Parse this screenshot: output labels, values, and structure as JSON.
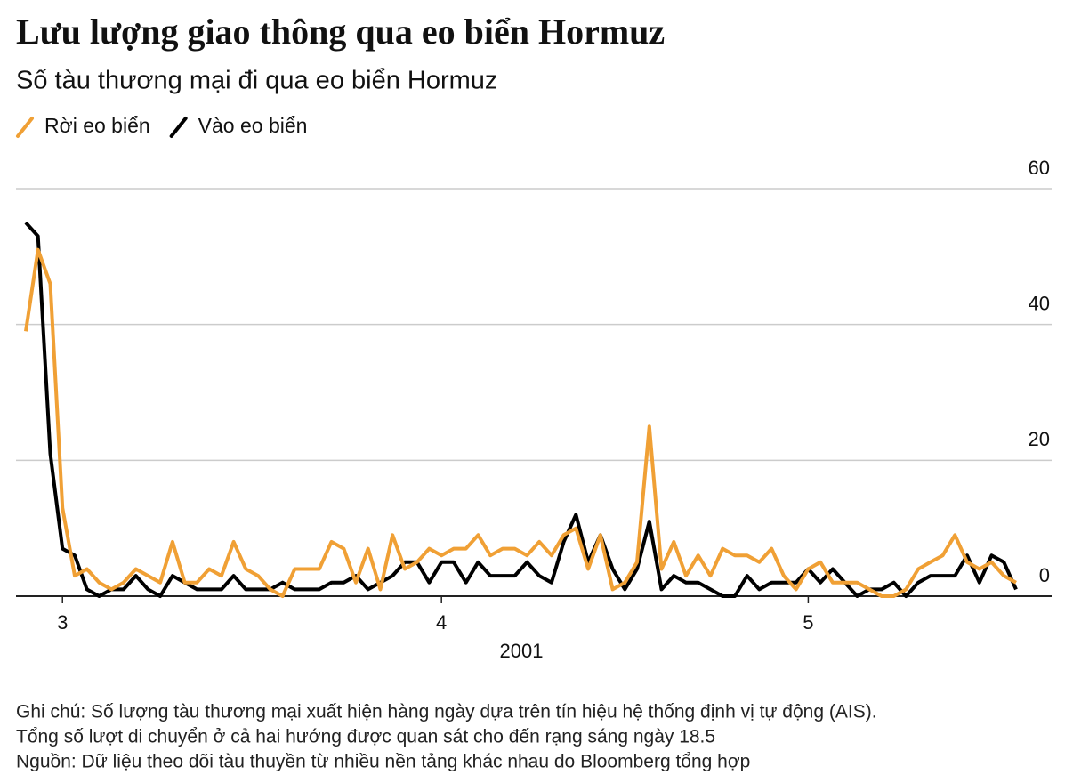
{
  "chart_data": {
    "type": "line",
    "title": "Lưu lượng giao thông qua eo biển Hormuz",
    "subtitle": "Số tàu thương mại đi qua eo biển Hormuz",
    "xlabel": "2001",
    "categories": [
      null,
      null,
      null,
      "3",
      null,
      null,
      null,
      null,
      null,
      null,
      null,
      null,
      null,
      null,
      null,
      null,
      null,
      null,
      null,
      null,
      null,
      null,
      null,
      null,
      null,
      null,
      null,
      null,
      null,
      null,
      null,
      null,
      null,
      null,
      "4",
      null,
      null,
      null,
      null,
      null,
      null,
      null,
      null,
      null,
      null,
      null,
      null,
      null,
      null,
      null,
      null,
      null,
      null,
      null,
      null,
      null,
      null,
      null,
      null,
      null,
      null,
      null,
      null,
      null,
      "5",
      null,
      null,
      null,
      null,
      null,
      null,
      null,
      null,
      null,
      null,
      null,
      null,
      null,
      null,
      null,
      null,
      null
    ],
    "series": [
      {
        "name": "Rời eo biển",
        "color": "#f0a035",
        "values": [
          39,
          51,
          46,
          13,
          3,
          4,
          2,
          1,
          2,
          4,
          3,
          2,
          8,
          2,
          2,
          4,
          3,
          8,
          4,
          3,
          1,
          0,
          4,
          4,
          4,
          8,
          7,
          2,
          7,
          1,
          9,
          4,
          5,
          7,
          6,
          7,
          7,
          9,
          6,
          7,
          7,
          6,
          8,
          6,
          9,
          10,
          4,
          9,
          1,
          2,
          5,
          25,
          4,
          8,
          3,
          6,
          3,
          7,
          6,
          6,
          5,
          7,
          3,
          1,
          4,
          5,
          2,
          2,
          2,
          1,
          0,
          0,
          1,
          4,
          5,
          6,
          9,
          5,
          4,
          5,
          3,
          2
        ]
      },
      {
        "name": "Vào eo biển",
        "color": "#000000",
        "values": [
          55,
          53,
          21,
          7,
          6,
          1,
          0,
          1,
          1,
          3,
          1,
          0,
          3,
          2,
          1,
          1,
          1,
          3,
          1,
          1,
          1,
          2,
          1,
          1,
          1,
          2,
          2,
          3,
          1,
          2,
          3,
          5,
          5,
          2,
          5,
          5,
          2,
          5,
          3,
          3,
          3,
          5,
          3,
          2,
          8,
          12,
          5,
          9,
          4,
          1,
          4,
          11,
          1,
          3,
          2,
          2,
          1,
          0,
          0,
          3,
          1,
          2,
          2,
          2,
          4,
          2,
          4,
          2,
          0,
          1,
          1,
          2,
          0,
          2,
          3,
          3,
          3,
          6,
          2,
          6,
          5,
          1
        ]
      }
    ],
    "ylim": [
      0,
      60
    ],
    "yticks": [
      0,
      20,
      40,
      60
    ],
    "grid": true,
    "notes": [
      "Ghi chú: Số lượng tàu thương mại xuất hiện hàng ngày dựa trên tín hiệu hệ thống định vị tự động (AIS).",
      "Tổng số lượt di chuyển ở cả hai hướng được quan sát cho đến rạng sáng ngày 18.5",
      "Nguồn: Dữ liệu theo dõi tàu thuyền từ nhiều nền tảng khác nhau do Bloomberg tổng hợp"
    ]
  }
}
